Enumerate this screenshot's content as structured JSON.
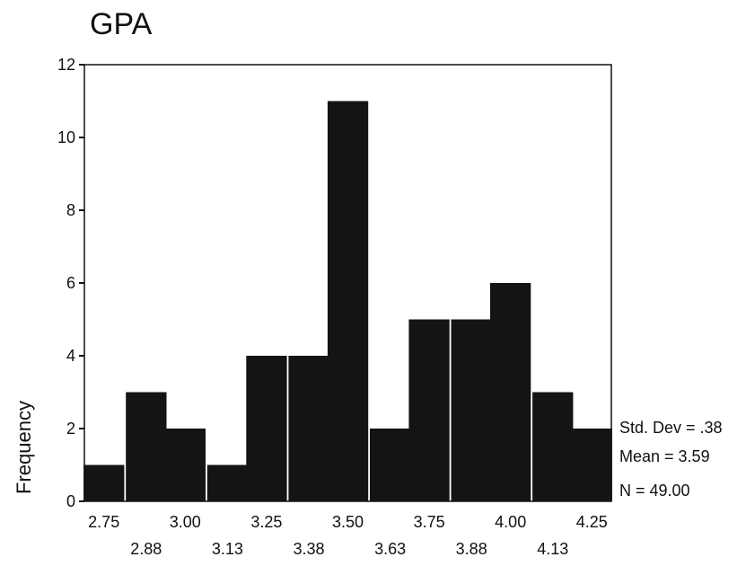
{
  "chart_data": {
    "type": "bar",
    "title": "GPA",
    "xlabel": "",
    "ylabel": "Frequency",
    "ylim": [
      0,
      12
    ],
    "yticks": [
      0,
      2,
      4,
      6,
      8,
      10,
      12
    ],
    "xlim": [
      2.69,
      4.31
    ],
    "bin_width": 0.125,
    "bins": [
      {
        "center": 2.75,
        "value": 1
      },
      {
        "center": 2.88,
        "value": 3
      },
      {
        "center": 3.0,
        "value": 2
      },
      {
        "center": 3.13,
        "value": 1
      },
      {
        "center": 3.25,
        "value": 4
      },
      {
        "center": 3.38,
        "value": 4
      },
      {
        "center": 3.5,
        "value": 11
      },
      {
        "center": 3.63,
        "value": 2
      },
      {
        "center": 3.75,
        "value": 5
      },
      {
        "center": 3.88,
        "value": 5
      },
      {
        "center": 4.0,
        "value": 6
      },
      {
        "center": 4.13,
        "value": 3
      },
      {
        "center": 4.25,
        "value": 2
      }
    ],
    "xtick_labels_row1": [
      "2.75",
      "3.00",
      "3.25",
      "3.50",
      "3.75",
      "4.00",
      "4.25"
    ],
    "xtick_labels_row2": [
      "2.88",
      "3.13",
      "3.38",
      "3.63",
      "3.88",
      "4.13"
    ],
    "stats": {
      "std_dev": "Std. Dev = .38",
      "mean": "Mean = 3.59",
      "n": "N = 49.00"
    },
    "grid": false,
    "bar_color": "#141414"
  }
}
